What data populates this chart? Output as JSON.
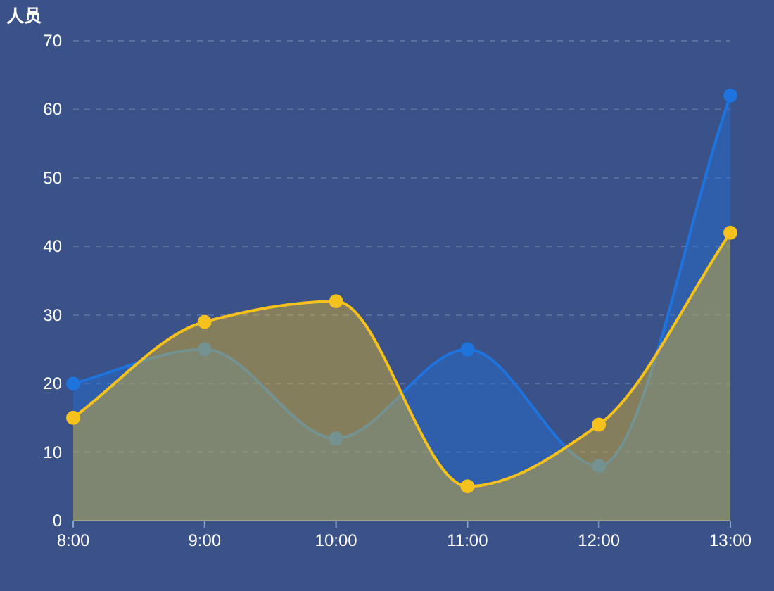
{
  "chart_data": {
    "type": "area",
    "ylabel": "人员",
    "categories": [
      "8:00",
      "9:00",
      "10:00",
      "11:00",
      "12:00",
      "13:00"
    ],
    "series": [
      {
        "color": "#1e73dc",
        "values": [
          20,
          25,
          12,
          25,
          8,
          62
        ]
      },
      {
        "color": "#f5c11c",
        "values": [
          15,
          29,
          32,
          5,
          14,
          42
        ]
      }
    ],
    "ylim": [
      0,
      70
    ],
    "yticks": [
      0,
      10,
      20,
      30,
      40,
      50,
      60,
      70
    ],
    "grid": "y",
    "marker": "circle"
  }
}
